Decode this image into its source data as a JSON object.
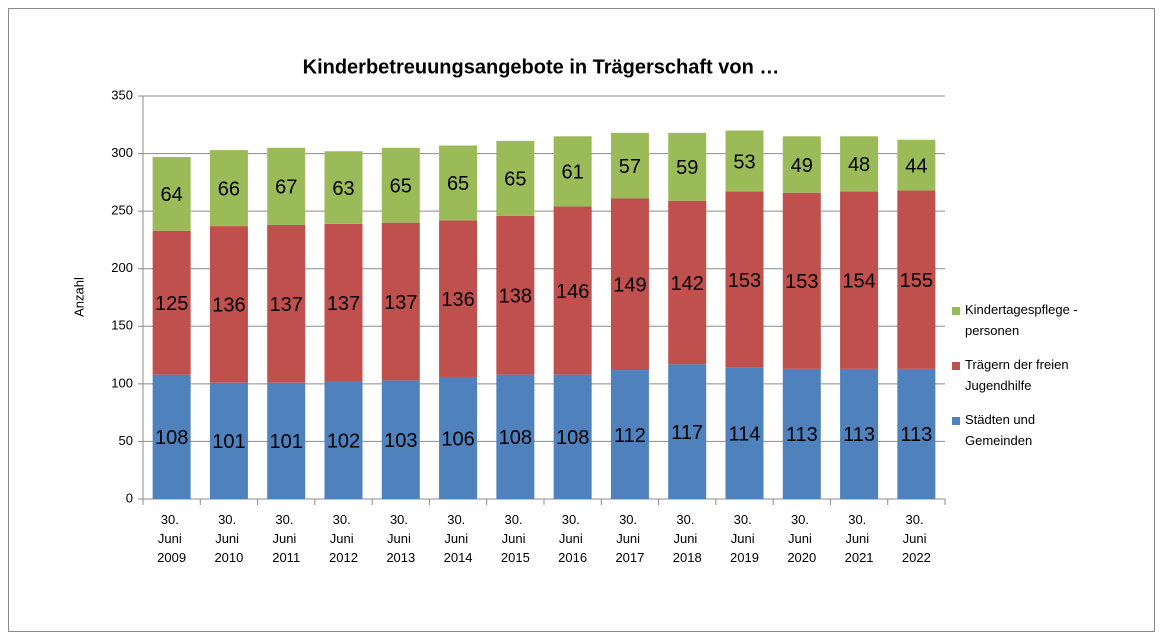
{
  "chart_data": {
    "type": "stacked_bar",
    "title": "Kinderbetreuungsangebote in Trägerschaft von …",
    "y_label": "Anzahl",
    "categories": [
      "30. Juni 2009",
      "30. Juni 2010",
      "30. Juni 2011",
      "30. Juni 2012",
      "30. Juni 2013",
      "30. Juni 2014",
      "30. Juni 2015",
      "30. Juni 2016",
      "30. Juni 2017",
      "30. Juni 2018",
      "30. Juni 2019",
      "30. Juni 2020",
      "30. Juni 2021",
      "30. Juni 2022"
    ],
    "series": [
      {
        "name": "Städten und Gemeinden",
        "color": "#4f81bd",
        "values": [
          108,
          101,
          101,
          102,
          103,
          106,
          108,
          108,
          112,
          117,
          114,
          113,
          113,
          113
        ]
      },
      {
        "name": "Trägern der freien Jugendhilfe",
        "color": "#c0504d",
        "values": [
          125,
          136,
          137,
          137,
          137,
          136,
          138,
          146,
          149,
          142,
          153,
          153,
          154,
          155
        ]
      },
      {
        "name": "Kindertagespflege - personen",
        "color": "#9bbb59",
        "values": [
          64,
          66,
          67,
          63,
          65,
          65,
          65,
          61,
          57,
          59,
          53,
          49,
          48,
          44
        ]
      }
    ],
    "ylim": [
      0,
      350
    ],
    "yticks": [
      0,
      50,
      100,
      150,
      200,
      250,
      300,
      350
    ],
    "grid": true,
    "legend": "right"
  }
}
